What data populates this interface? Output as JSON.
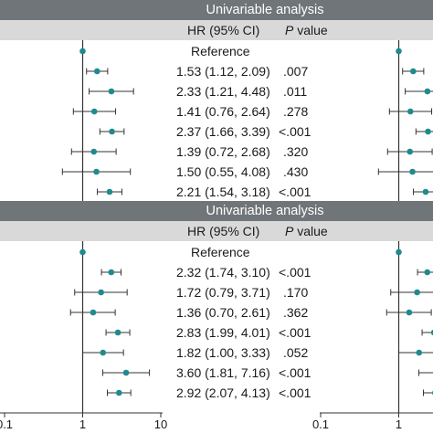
{
  "colors": {
    "header_band": "#6f7578",
    "subheader_band": "#d9d9d9",
    "marker": "#1f8a8f",
    "line": "#333333"
  },
  "panels": [
    {
      "title": "Univariable analysis",
      "col_hr": "HR (95% CI)",
      "col_p_letter": "P",
      "col_p_rest": " value",
      "reference_label": "Reference",
      "rows": [
        {
          "label": "Reference"
        },
        {
          "label": "1.53 (1.12, 2.09)",
          "p": ".007"
        },
        {
          "label": "2.33 (1.21, 4.48)",
          "p": ".011"
        },
        {
          "label": "1.41 (0.76, 2.64)",
          "p": ".278"
        },
        {
          "label": "2.37 (1.66, 3.39)",
          "p": "<.001"
        },
        {
          "label": "1.39 (0.72, 2.68)",
          "p": ".320"
        },
        {
          "label": "1.50 (0.55, 4.08)",
          "p": ".430"
        },
        {
          "label": "2.21 (1.54, 3.18)",
          "p": "<.001"
        }
      ]
    },
    {
      "title": "Univariable analysis",
      "col_hr": "HR (95% CI)",
      "col_p_letter": "P",
      "col_p_rest": " value",
      "reference_label": "Reference",
      "rows": [
        {
          "label": "Reference"
        },
        {
          "label": "2.32 (1.74, 3.10)",
          "p": "<.001"
        },
        {
          "label": "1.72 (0.79, 3.71)",
          "p": ".170"
        },
        {
          "label": "1.36 (0.70, 2.61)",
          "p": ".362"
        },
        {
          "label": "2.83 (1.99, 4.01)",
          "p": "<.001"
        },
        {
          "label": "1.82 (1.00, 3.33)",
          "p": ".052"
        },
        {
          "label": "3.60 (1.81, 7.16)",
          "p": "<.001"
        },
        {
          "label": "2.92 (2.07, 4.13)",
          "p": "<.001"
        }
      ]
    }
  ],
  "chart_data": [
    {
      "type": "forest",
      "x_scale": "log",
      "reference_line": 1,
      "points": [
        {
          "hr": 1,
          "lo": null,
          "hi": null
        },
        {
          "hr": 1.53,
          "lo": 1.12,
          "hi": 2.09
        },
        {
          "hr": 2.33,
          "lo": 1.21,
          "hi": 4.48
        },
        {
          "hr": 1.41,
          "lo": 0.76,
          "hi": 2.64
        },
        {
          "hr": 2.37,
          "lo": 1.66,
          "hi": 3.39
        },
        {
          "hr": 1.39,
          "lo": 0.72,
          "hi": 2.68
        },
        {
          "hr": 1.5,
          "lo": 0.55,
          "hi": 4.08
        },
        {
          "hr": 2.21,
          "lo": 1.54,
          "hi": 3.18
        }
      ]
    },
    {
      "type": "forest",
      "x_scale": "log",
      "reference_line": 1,
      "points": [
        {
          "hr": 1,
          "lo": null,
          "hi": null
        },
        {
          "hr": 2.32,
          "lo": 1.74,
          "hi": 3.1
        },
        {
          "hr": 1.72,
          "lo": 0.79,
          "hi": 3.71
        },
        {
          "hr": 1.36,
          "lo": 0.7,
          "hi": 2.61
        },
        {
          "hr": 2.83,
          "lo": 1.99,
          "hi": 4.01
        },
        {
          "hr": 1.82,
          "lo": 1.0,
          "hi": 3.33
        },
        {
          "hr": 3.6,
          "lo": 1.81,
          "hi": 7.16
        },
        {
          "hr": 2.92,
          "lo": 2.07,
          "hi": 4.13
        }
      ]
    }
  ],
  "x_axis": {
    "ticks": [
      0.1,
      1,
      10
    ],
    "tick_labels": [
      "0.1",
      "1",
      "10"
    ],
    "right_tick_labels": [
      "0.1",
      "1"
    ]
  }
}
